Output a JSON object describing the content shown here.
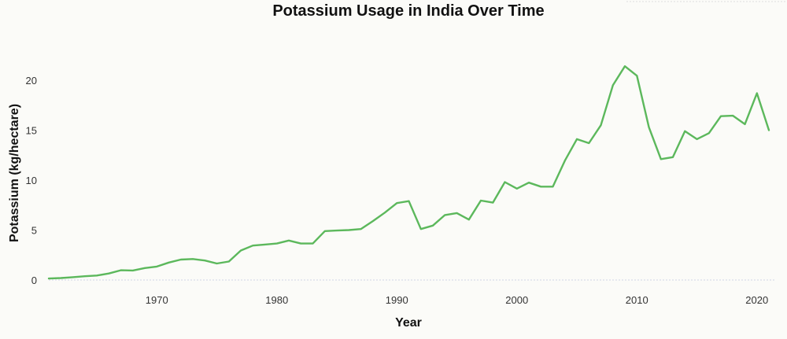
{
  "chart_data": {
    "type": "line",
    "title": "Potassium Usage in India Over Time",
    "xlabel": "Year",
    "ylabel": "Potassium (kg/hectare)",
    "xlim": [
      1961,
      2021
    ],
    "ylim": [
      0,
      22
    ],
    "x_ticks": [
      1970,
      1980,
      1990,
      2000,
      2010,
      2020
    ],
    "y_ticks": [
      0,
      5,
      10,
      15,
      20
    ],
    "grid": false,
    "legend": "none",
    "line_color": "#5cb85c",
    "series": [
      {
        "x": [
          1961,
          1962,
          1963,
          1964,
          1965,
          1966,
          1967,
          1968,
          1969,
          1970,
          1971,
          1972,
          1973,
          1974,
          1975,
          1976,
          1977,
          1978,
          1979,
          1980,
          1981,
          1982,
          1983,
          1984,
          1985,
          1986,
          1987,
          1988,
          1989,
          1990,
          1991,
          1992,
          1993,
          1994,
          1995,
          1996,
          1997,
          1998,
          1999,
          2000,
          2001,
          2002,
          2003,
          2004,
          2005,
          2006,
          2007,
          2008,
          2009,
          2010,
          2011,
          2012,
          2013,
          2014,
          2015,
          2016,
          2017,
          2018,
          2019,
          2020,
          2021
        ],
        "values": [
          0.15,
          0.2,
          0.28,
          0.38,
          0.45,
          0.65,
          0.98,
          0.95,
          1.2,
          1.35,
          1.75,
          2.05,
          2.1,
          1.95,
          1.65,
          1.85,
          2.95,
          3.45,
          3.55,
          3.65,
          3.95,
          3.65,
          3.65,
          4.9,
          4.95,
          5.0,
          5.1,
          5.9,
          6.75,
          7.7,
          7.9,
          5.1,
          5.45,
          6.5,
          6.7,
          6.05,
          7.95,
          7.75,
          9.8,
          9.15,
          9.75,
          9.35,
          9.35,
          11.95,
          14.1,
          13.7,
          15.5,
          19.5,
          21.4,
          20.45,
          15.3,
          12.1,
          12.3,
          14.9,
          14.1,
          14.7,
          16.4,
          16.45,
          15.6,
          18.7,
          15.0
        ]
      }
    ]
  }
}
